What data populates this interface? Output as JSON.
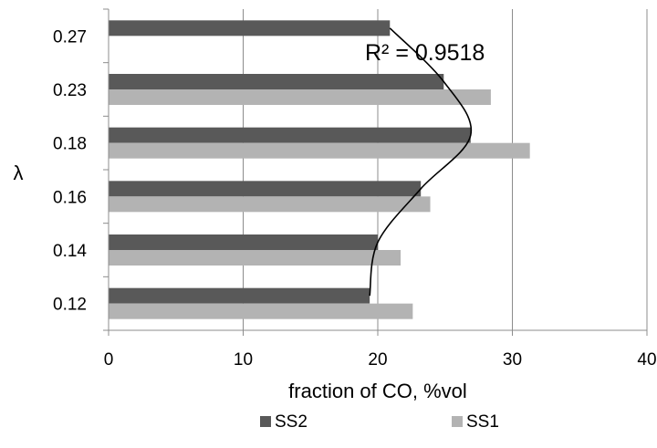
{
  "chart_data": {
    "type": "bar",
    "orientation": "horizontal",
    "categories": [
      "0.12",
      "0.14",
      "0.16",
      "0.18",
      "0.23",
      "0.27"
    ],
    "series": [
      {
        "name": "SS2",
        "values": [
          19.4,
          20.0,
          23.2,
          26.9,
          24.9,
          20.9
        ],
        "color": "#595959"
      },
      {
        "name": "SS1",
        "values": [
          22.6,
          21.7,
          23.9,
          31.3,
          28.4,
          null
        ],
        "color": "#b3b3b3"
      }
    ],
    "xlabel": "fraction of CO, %vol",
    "ylabel": "λ",
    "xlim": [
      0,
      40
    ],
    "xticks": [
      "0",
      "10",
      "20",
      "30",
      "40"
    ],
    "grid": "vertical",
    "legend": "bottom",
    "annotation": "R² = 0.9518",
    "trendline": {
      "series": "SS2",
      "type": "polynomial"
    }
  }
}
